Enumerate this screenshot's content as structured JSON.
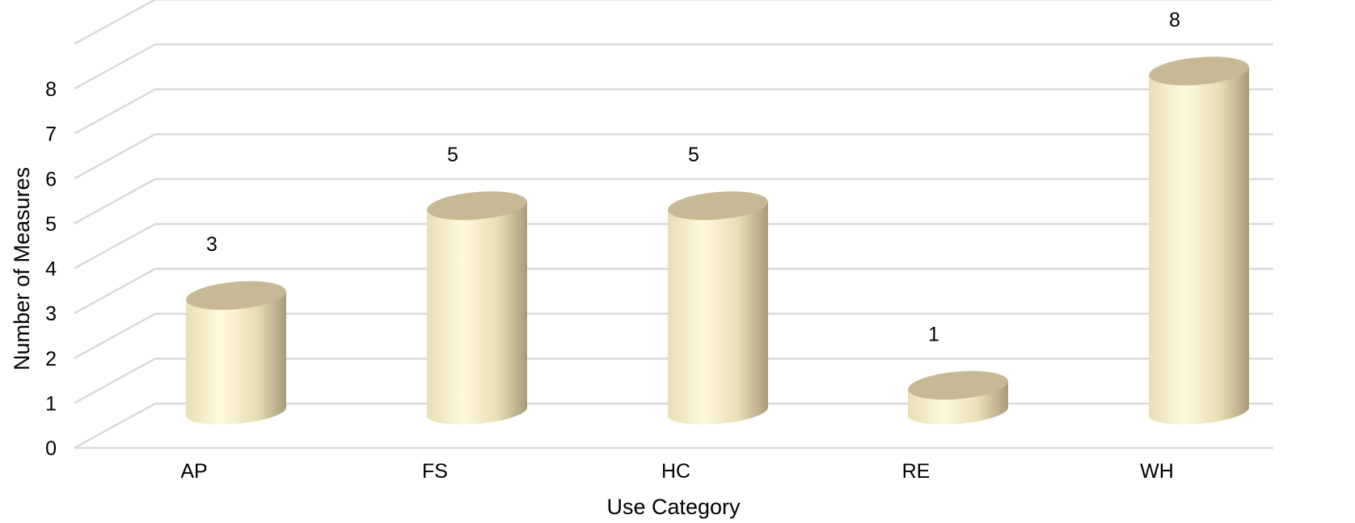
{
  "chart_data": {
    "type": "bar",
    "categories": [
      "AP",
      "FS",
      "HC",
      "RE",
      "WH"
    ],
    "values": [
      3,
      5,
      5,
      1,
      8
    ],
    "data_labels": [
      "3",
      "5",
      "5",
      "1",
      "8"
    ],
    "title": "",
    "xlabel": "Use Category",
    "ylabel": "Number of Measures",
    "yticks": [
      "0",
      "1",
      "2",
      "3",
      "4",
      "5",
      "6",
      "7",
      "8"
    ],
    "ylim": [
      0,
      8
    ],
    "grid": true,
    "legend": "none",
    "style": "3d-cylinder",
    "colors": {
      "bar_light": "#fff9dc",
      "bar_mid": "#e9dfb4",
      "bar_dark": "#a89c78",
      "bar_top": "#c7b994",
      "grid": "#d9d9d9"
    }
  }
}
